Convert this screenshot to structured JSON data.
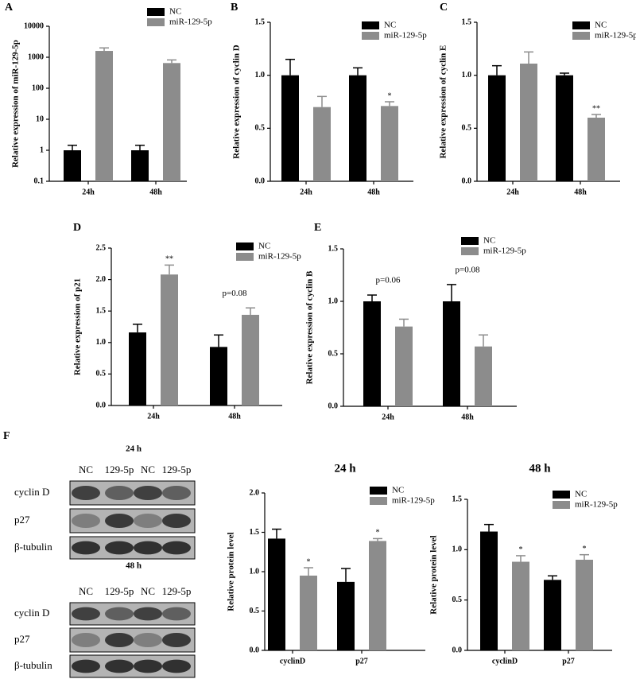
{
  "panels": [
    "A",
    "B",
    "C",
    "D",
    "E",
    "F"
  ],
  "blots": [
    {
      "title": "24 h",
      "lanes": [
        "NC",
        "129-5p",
        "NC",
        "129-5p"
      ],
      "rows": [
        "cyclin D",
        "p27",
        "β-tubulin"
      ]
    },
    {
      "title": "48 h",
      "lanes": [
        "NC",
        "129-5p",
        "NC",
        "129-5p"
      ],
      "rows": [
        "cyclin D",
        "p27",
        "β-tubulin"
      ]
    }
  ],
  "chart_data": [
    {
      "type": "bar",
      "y_label": "Relative expression of miR-129-5p",
      "log_scale": true,
      "categories": [
        "24h",
        "48h"
      ],
      "ylim": [
        0.1,
        10000
      ],
      "yticks": [
        0.1,
        1,
        10,
        100,
        1000,
        10000
      ],
      "series": [
        {
          "name": "NC",
          "color": "#000000",
          "values": [
            1,
            1
          ],
          "errors": [
            0.45,
            0.45
          ]
        },
        {
          "name": "miR-129-5p",
          "color": "#8c8c8c",
          "values": [
            1600,
            650
          ],
          "errors": [
            400,
            170
          ]
        }
      ]
    },
    {
      "type": "bar",
      "y_label": "Relative expression of cyclin D",
      "categories": [
        "24h",
        "48h"
      ],
      "ylim": [
        0,
        1.5
      ],
      "yticks": [
        {
          "value": 0,
          "label": "0.0"
        },
        0.5,
        {
          "value": 1,
          "label": "1.0"
        },
        1.5
      ],
      "series": [
        {
          "name": "NC",
          "color": "#000000",
          "values": [
            1.0,
            1.0
          ],
          "errors": [
            0.15,
            0.07
          ]
        },
        {
          "name": "miR-129-5p",
          "color": "#8c8c8c",
          "values": [
            0.7,
            0.71
          ],
          "errors": [
            0.1,
            0.04
          ],
          "annotations": [
            null,
            "*"
          ]
        }
      ]
    },
    {
      "type": "bar",
      "y_label": "Relative expression of cyclin E",
      "categories": [
        "24h",
        "48h"
      ],
      "ylim": [
        0,
        1.5
      ],
      "yticks": [
        {
          "value": 0,
          "label": "0.0"
        },
        0.5,
        {
          "value": 1,
          "label": "1.0"
        },
        1.5
      ],
      "series": [
        {
          "name": "NC",
          "color": "#000000",
          "values": [
            1.0,
            1.0
          ],
          "errors": [
            0.09,
            0.02
          ]
        },
        {
          "name": "miR-129-5p",
          "color": "#8c8c8c",
          "values": [
            1.11,
            0.6
          ],
          "errors": [
            0.11,
            0.03
          ],
          "annotations": [
            null,
            "**"
          ]
        }
      ]
    },
    {
      "type": "bar",
      "y_label": "Relative expression of p21",
      "categories": [
        "24h",
        "48h"
      ],
      "ylim": [
        0,
        2.5
      ],
      "yticks": [
        {
          "value": 0,
          "label": "0.0"
        },
        0.5,
        {
          "value": 1,
          "label": "1.0"
        },
        1.5,
        {
          "value": 2,
          "label": "2.0"
        },
        2.5
      ],
      "category_annotations": [
        null,
        "p=0.08"
      ],
      "series": [
        {
          "name": "NC",
          "color": "#000000",
          "values": [
            1.16,
            0.93
          ],
          "errors": [
            0.13,
            0.19
          ]
        },
        {
          "name": "miR-129-5p",
          "color": "#8c8c8c",
          "values": [
            2.08,
            1.44
          ],
          "errors": [
            0.15,
            0.11
          ],
          "annotations": [
            "**",
            null
          ]
        }
      ]
    },
    {
      "type": "bar",
      "y_label": "Relative expression of cyclin B",
      "categories": [
        "24h",
        "48h"
      ],
      "ylim": [
        0,
        1.5
      ],
      "yticks": [
        {
          "value": 0,
          "label": "0.0"
        },
        0.5,
        {
          "value": 1,
          "label": "1.0"
        },
        1.5
      ],
      "category_annotations": [
        "p=0.06",
        "p=0.08"
      ],
      "series": [
        {
          "name": "NC",
          "color": "#000000",
          "values": [
            1.0,
            1.0
          ],
          "errors": [
            0.06,
            0.16
          ]
        },
        {
          "name": "miR-129-5p",
          "color": "#8c8c8c",
          "values": [
            0.76,
            0.57
          ],
          "errors": [
            0.07,
            0.11
          ]
        }
      ]
    },
    {
      "type": "bar",
      "title": "24 h",
      "y_label": "Relative protein level",
      "categories": [
        "cyclinD",
        "p27"
      ],
      "ylim": [
        0,
        2.0
      ],
      "yticks": [
        {
          "value": 0,
          "label": "0.0"
        },
        0.5,
        {
          "value": 1,
          "label": "1.0"
        },
        1.5,
        {
          "value": 2,
          "label": "2.0"
        }
      ],
      "series": [
        {
          "name": "NC",
          "color": "#000000",
          "values": [
            1.42,
            0.87
          ],
          "errors": [
            0.12,
            0.17
          ]
        },
        {
          "name": "miR-129-5p",
          "color": "#8c8c8c",
          "values": [
            0.95,
            1.39
          ],
          "errors": [
            0.1,
            0.03
          ],
          "annotations": [
            "*",
            "*"
          ]
        }
      ]
    },
    {
      "type": "bar",
      "title": "48 h",
      "y_label": "Relative protein level",
      "categories": [
        "cyclinD",
        "p27"
      ],
      "ylim": [
        0,
        1.5
      ],
      "yticks": [
        {
          "value": 0,
          "label": "0.0"
        },
        0.5,
        {
          "value": 1,
          "label": "1.0"
        },
        1.5
      ],
      "series": [
        {
          "name": "NC",
          "color": "#000000",
          "values": [
            1.18,
            0.7
          ],
          "errors": [
            0.07,
            0.04
          ]
        },
        {
          "name": "miR-129-5p",
          "color": "#8c8c8c",
          "values": [
            0.88,
            0.9
          ],
          "errors": [
            0.06,
            0.05
          ],
          "annotations": [
            "*",
            "*"
          ]
        }
      ]
    }
  ]
}
